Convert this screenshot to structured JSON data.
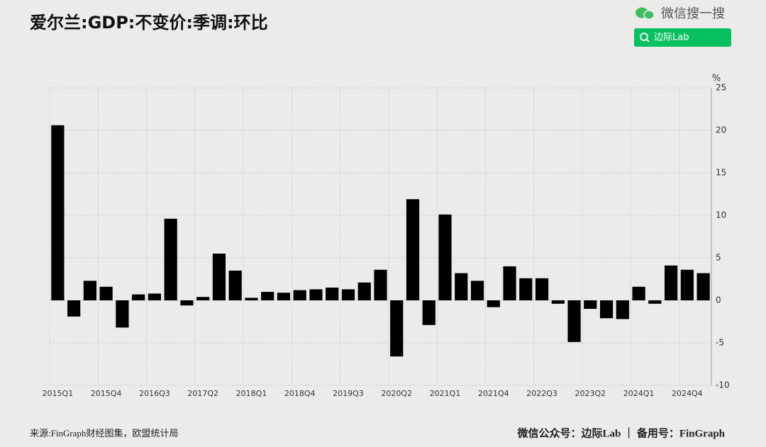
{
  "chart_data": {
    "type": "bar",
    "title": "爱尔兰:GDP:不变价:季调:环比",
    "y_unit": "%",
    "categories": [
      "2015Q1",
      null,
      null,
      "2015Q4",
      null,
      null,
      "2016Q3",
      null,
      null,
      "2017Q2",
      null,
      null,
      "2018Q1",
      null,
      null,
      "2018Q4",
      null,
      null,
      "2019Q3",
      null,
      null,
      "2020Q2",
      null,
      null,
      "2021Q1",
      null,
      null,
      "2021Q4",
      null,
      null,
      "2022Q3",
      null,
      null,
      "2023Q2",
      null,
      null,
      "2024Q1",
      null,
      null,
      "2024Q4",
      null
    ],
    "values": [
      20.6,
      -1.9,
      2.3,
      1.6,
      -3.2,
      0.7,
      0.8,
      9.6,
      -0.6,
      0.4,
      5.5,
      3.5,
      0.3,
      1.0,
      0.9,
      1.2,
      1.3,
      1.5,
      1.3,
      2.1,
      3.6,
      -6.6,
      11.9,
      -2.9,
      10.1,
      3.2,
      2.3,
      -0.8,
      4.0,
      2.6,
      2.6,
      -0.4,
      -4.9,
      -1.0,
      -2.1,
      -2.2,
      1.6,
      -0.4,
      4.1,
      3.6,
      3.2
    ],
    "color": "#000000",
    "ylim": [
      -10,
      25
    ],
    "yticks": [
      -10,
      -5,
      0,
      5,
      10,
      15,
      20,
      25
    ],
    "grid": true
  },
  "watermark": "微信搜一搜",
  "search_button": "边际Lab",
  "source": "来源:FinGraph财经图集，欧盟统计局",
  "footer": "微信公众号：边际Lab ｜ 备用号：FinGraph"
}
